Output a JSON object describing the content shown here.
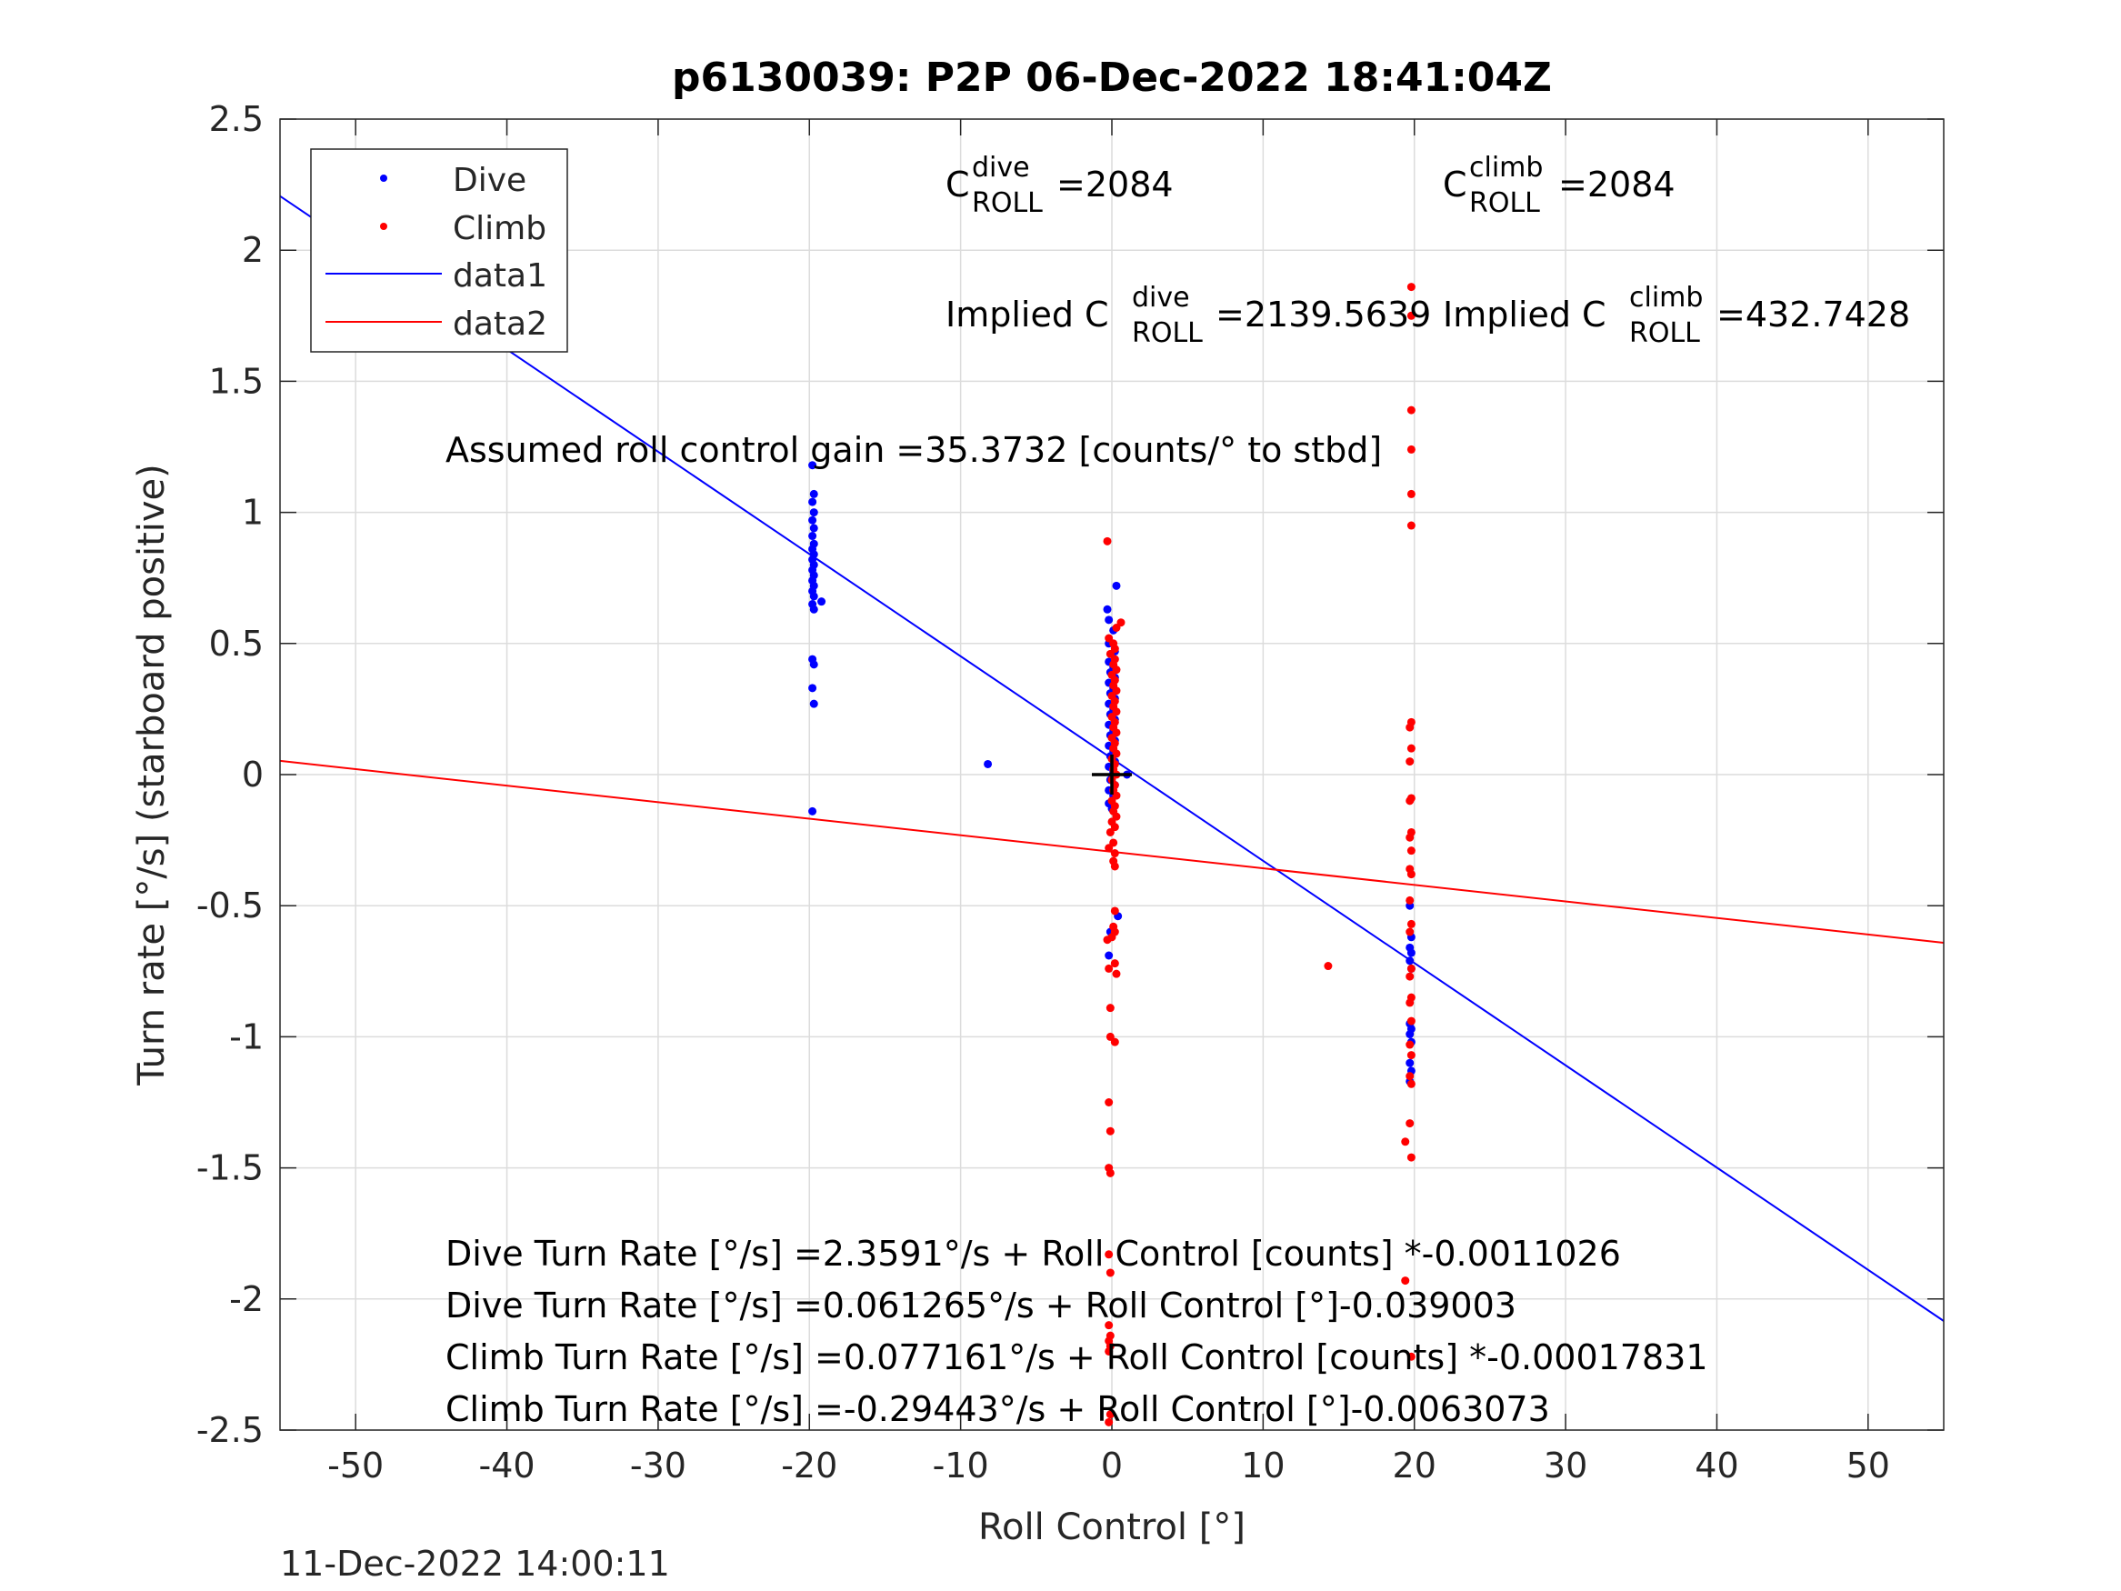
{
  "chart_data": {
    "type": "scatter",
    "title": "p6130039: P2P 06-Dec-2022 18:41:04Z",
    "xlabel": "Roll Control [°]",
    "ylabel": "Turn rate [°/s] (starboard positive)",
    "xlim": [
      -55,
      55
    ],
    "ylim": [
      -2.5,
      2.5
    ],
    "xticks": [
      -50,
      -40,
      -30,
      -20,
      -10,
      0,
      10,
      20,
      30,
      40,
      50
    ],
    "xtick_labels": [
      "-50",
      "-40",
      "-30",
      "-20",
      "-10",
      "0",
      "10",
      "20",
      "30",
      "40",
      "50"
    ],
    "yticks": [
      -2.5,
      -2,
      -1.5,
      -1,
      -0.5,
      0,
      0.5,
      1,
      1.5,
      2,
      2.5
    ],
    "ytick_labels": [
      "-2.5",
      "-2",
      "-1.5",
      "-1",
      "-0.5",
      "0",
      "0.5",
      "1",
      "1.5",
      "2",
      "2.5"
    ],
    "grid": true,
    "legend_position": "top-left",
    "footer": "11-Dec-2022 14:00:11",
    "colors": {
      "dive": "#0000ff",
      "climb": "#ff0000",
      "crosshair": "#000000"
    },
    "center_marker": {
      "x": 0,
      "y": 0
    },
    "series": [
      {
        "name": "Dive",
        "kind": "points",
        "color": "#0000ff",
        "points": [
          [
            -19.8,
            1.18
          ],
          [
            -19.7,
            1.07
          ],
          [
            -19.8,
            1.04
          ],
          [
            -19.7,
            1.0
          ],
          [
            -19.8,
            0.97
          ],
          [
            -19.7,
            0.94
          ],
          [
            -19.8,
            0.91
          ],
          [
            -19.7,
            0.88
          ],
          [
            -19.8,
            0.86
          ],
          [
            -19.7,
            0.84
          ],
          [
            -19.8,
            0.82
          ],
          [
            -19.7,
            0.8
          ],
          [
            -19.8,
            0.78
          ],
          [
            -19.7,
            0.76
          ],
          [
            -19.8,
            0.74
          ],
          [
            -19.7,
            0.72
          ],
          [
            -19.8,
            0.7
          ],
          [
            -19.7,
            0.68
          ],
          [
            -19.2,
            0.66
          ],
          [
            -19.8,
            0.65
          ],
          [
            -19.7,
            0.63
          ],
          [
            -19.8,
            0.44
          ],
          [
            -19.7,
            0.42
          ],
          [
            -19.8,
            0.33
          ],
          [
            -19.7,
            0.27
          ],
          [
            -19.8,
            -0.14
          ],
          [
            -8.2,
            0.04
          ],
          [
            -0.3,
            0.63
          ],
          [
            0.3,
            0.72
          ],
          [
            -0.2,
            0.59
          ],
          [
            0.1,
            0.55
          ],
          [
            -0.2,
            0.5
          ],
          [
            0.2,
            0.47
          ],
          [
            -0.2,
            0.43
          ],
          [
            0.1,
            0.41
          ],
          [
            -0.1,
            0.39
          ],
          [
            0.2,
            0.37
          ],
          [
            -0.2,
            0.35
          ],
          [
            0.1,
            0.33
          ],
          [
            -0.1,
            0.31
          ],
          [
            0.2,
            0.29
          ],
          [
            -0.2,
            0.27
          ],
          [
            0.1,
            0.25
          ],
          [
            -0.1,
            0.23
          ],
          [
            0.2,
            0.21
          ],
          [
            -0.2,
            0.19
          ],
          [
            0.1,
            0.17
          ],
          [
            -0.1,
            0.15
          ],
          [
            0.2,
            0.13
          ],
          [
            -0.2,
            0.11
          ],
          [
            0.1,
            0.09
          ],
          [
            -0.1,
            0.07
          ],
          [
            0.2,
            0.05
          ],
          [
            -0.2,
            0.03
          ],
          [
            0.1,
            0.01
          ],
          [
            -0.1,
            -0.02
          ],
          [
            0.2,
            -0.04
          ],
          [
            -0.2,
            -0.06
          ],
          [
            0.1,
            -0.08
          ],
          [
            -0.2,
            -0.11
          ],
          [
            0.0,
            -0.13
          ],
          [
            -0.1,
            -0.6
          ],
          [
            0.4,
            -0.54
          ],
          [
            -0.2,
            -0.69
          ],
          [
            1.0,
            0.0
          ],
          [
            19.7,
            -0.5
          ],
          [
            19.8,
            -0.62
          ],
          [
            19.7,
            -0.66
          ],
          [
            19.8,
            -0.68
          ],
          [
            19.7,
            -0.71
          ],
          [
            19.8,
            -0.74
          ],
          [
            19.7,
            -0.95
          ],
          [
            19.8,
            -0.97
          ],
          [
            19.7,
            -0.99
          ],
          [
            19.8,
            -1.02
          ],
          [
            19.7,
            -1.1
          ],
          [
            19.8,
            -1.13
          ],
          [
            19.7,
            -1.17
          ]
        ]
      },
      {
        "name": "Climb",
        "kind": "points",
        "color": "#ff0000",
        "points": [
          [
            -0.3,
            0.89
          ],
          [
            0.6,
            0.58
          ],
          [
            0.3,
            0.56
          ],
          [
            -0.2,
            0.52
          ],
          [
            0.1,
            0.5
          ],
          [
            0.2,
            0.48
          ],
          [
            -0.1,
            0.46
          ],
          [
            0.2,
            0.44
          ],
          [
            0.1,
            0.42
          ],
          [
            0.3,
            0.4
          ],
          [
            0.0,
            0.38
          ],
          [
            0.2,
            0.36
          ],
          [
            0.1,
            0.34
          ],
          [
            0.3,
            0.32
          ],
          [
            0.0,
            0.3
          ],
          [
            0.2,
            0.28
          ],
          [
            0.1,
            0.26
          ],
          [
            0.3,
            0.24
          ],
          [
            0.0,
            0.22
          ],
          [
            0.2,
            0.2
          ],
          [
            0.1,
            0.18
          ],
          [
            0.3,
            0.16
          ],
          [
            0.0,
            0.14
          ],
          [
            0.2,
            0.12
          ],
          [
            0.1,
            0.1
          ],
          [
            0.3,
            0.08
          ],
          [
            0.0,
            0.06
          ],
          [
            0.2,
            0.04
          ],
          [
            0.1,
            0.02
          ],
          [
            0.3,
            0.0
          ],
          [
            0.0,
            -0.02
          ],
          [
            0.2,
            -0.04
          ],
          [
            0.1,
            -0.06
          ],
          [
            0.3,
            -0.08
          ],
          [
            0.0,
            -0.1
          ],
          [
            0.2,
            -0.12
          ],
          [
            0.1,
            -0.14
          ],
          [
            0.3,
            -0.16
          ],
          [
            0.0,
            -0.18
          ],
          [
            0.2,
            -0.2
          ],
          [
            -0.1,
            -0.22
          ],
          [
            0.1,
            -0.26
          ],
          [
            -0.2,
            -0.28
          ],
          [
            0.2,
            -0.3
          ],
          [
            0.1,
            -0.33
          ],
          [
            0.2,
            -0.35
          ],
          [
            0.2,
            -0.52
          ],
          [
            0.1,
            -0.58
          ],
          [
            0.2,
            -0.6
          ],
          [
            0.0,
            -0.62
          ],
          [
            -0.3,
            -0.63
          ],
          [
            0.2,
            -0.72
          ],
          [
            -0.2,
            -0.74
          ],
          [
            0.3,
            -0.76
          ],
          [
            -0.1,
            -0.89
          ],
          [
            -0.1,
            -1.0
          ],
          [
            0.2,
            -1.02
          ],
          [
            -0.2,
            -1.25
          ],
          [
            -0.1,
            -1.36
          ],
          [
            -0.2,
            -1.5
          ],
          [
            -0.1,
            -1.52
          ],
          [
            -0.2,
            -1.83
          ],
          [
            -0.1,
            -1.9
          ],
          [
            -0.2,
            -2.1
          ],
          [
            -0.1,
            -2.14
          ],
          [
            -0.2,
            -2.16
          ],
          [
            -0.1,
            -2.18
          ],
          [
            -0.2,
            -2.2
          ],
          [
            -0.1,
            -2.44
          ],
          [
            -0.2,
            -2.47
          ],
          [
            14.3,
            -0.73
          ],
          [
            19.8,
            1.86
          ],
          [
            19.8,
            1.75
          ],
          [
            19.8,
            1.39
          ],
          [
            19.8,
            1.24
          ],
          [
            19.8,
            1.07
          ],
          [
            19.8,
            0.95
          ],
          [
            19.8,
            0.2
          ],
          [
            19.7,
            0.18
          ],
          [
            19.8,
            0.1
          ],
          [
            19.7,
            0.05
          ],
          [
            19.8,
            -0.09
          ],
          [
            19.7,
            -0.1
          ],
          [
            19.8,
            -0.22
          ],
          [
            19.7,
            -0.24
          ],
          [
            19.8,
            -0.29
          ],
          [
            19.7,
            -0.36
          ],
          [
            19.8,
            -0.38
          ],
          [
            19.7,
            -0.48
          ],
          [
            19.8,
            -0.57
          ],
          [
            19.7,
            -0.6
          ],
          [
            19.8,
            -0.74
          ],
          [
            19.7,
            -0.77
          ],
          [
            19.8,
            -0.85
          ],
          [
            19.7,
            -0.87
          ],
          [
            19.8,
            -0.94
          ],
          [
            19.7,
            -1.03
          ],
          [
            19.8,
            -1.07
          ],
          [
            19.7,
            -1.15
          ],
          [
            19.8,
            -1.18
          ],
          [
            19.7,
            -1.33
          ],
          [
            19.4,
            -1.4
          ],
          [
            19.8,
            -1.46
          ],
          [
            19.4,
            -1.93
          ],
          [
            19.8,
            -2.22
          ]
        ]
      },
      {
        "name": "data1",
        "kind": "line",
        "color": "#0000ff",
        "intercept": 0.061265,
        "slope": -0.039003
      },
      {
        "name": "data2",
        "kind": "line",
        "color": "#ff0000",
        "intercept": -0.29443,
        "slope": -0.0063073
      }
    ],
    "annotations": {
      "c_dive_name": "C",
      "c_dive_sup": "dive",
      "c_dive_sub": "ROLL",
      "c_dive_value": " =2084",
      "c_climb_name": "C",
      "c_climb_sup": "climb",
      "c_climb_sub": "ROLL",
      "c_climb_value": " =2084",
      "implied_dive_prefix": "Implied C",
      "implied_dive_sup": "dive",
      "implied_dive_sub": "ROLL",
      "implied_dive_value": " =2139.5639",
      "implied_climb_prefix": "Implied C",
      "implied_climb_sup": "climb",
      "implied_climb_sub": "ROLL",
      "implied_climb_value": " =432.7428",
      "gain": "Assumed roll control gain =35.3732 [counts/° to stbd]",
      "fit_lines": [
        "Dive Turn Rate [°/s] =2.3591°/s + Roll Control [counts] *-0.0011026",
        "Dive Turn Rate [°/s] =0.061265°/s + Roll Control [°]-0.039003",
        "Climb Turn Rate [°/s] =0.077161°/s + Roll Control [counts] *-0.00017831",
        "Climb Turn Rate [°/s] =-0.29443°/s + Roll Control [°]-0.0063073"
      ]
    }
  }
}
